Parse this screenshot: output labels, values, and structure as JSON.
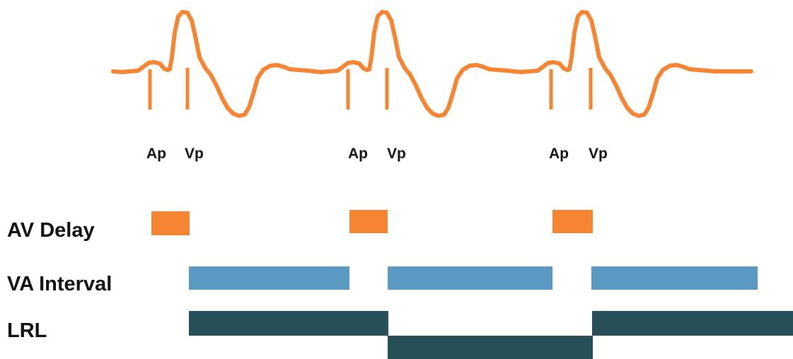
{
  "colors": {
    "trace": "#f58533",
    "av_delay": "#f58533",
    "va_interval": "#5a9ac2",
    "lrl": "#264f57",
    "text": "#111111"
  },
  "beats": [
    {
      "ap_label": "Ap",
      "vp_label": "Vp"
    },
    {
      "ap_label": "Ap",
      "vp_label": "Vp"
    },
    {
      "ap_label": "Ap",
      "vp_label": "Vp"
    }
  ],
  "rows": {
    "av_delay": "AV Delay",
    "va_interval": "VA Interval",
    "lrl": "LRL"
  }
}
